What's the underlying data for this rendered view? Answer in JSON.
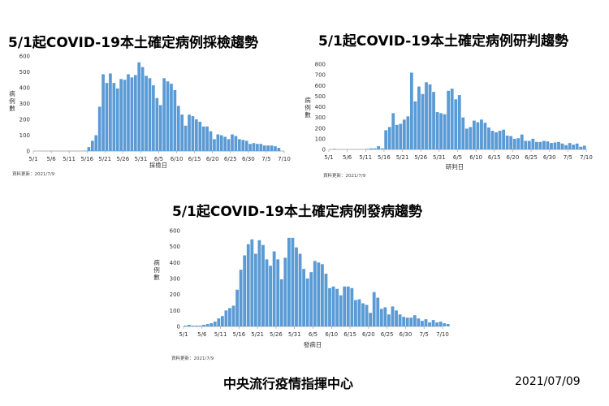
{
  "footer": {
    "center": "中央流行疫情指揮中心",
    "date": "2021/07/09"
  },
  "bar_color": "#5b9bd5",
  "chart_data": [
    {
      "type": "bar",
      "title": "5/1起COVID-19本土確定病例採檢趨勢",
      "xlabel": "採檢日",
      "ylabel": "病例數",
      "ylim": [
        0,
        600
      ],
      "yticks": [
        0,
        100,
        200,
        300,
        400,
        500,
        600
      ],
      "xtick_labels": [
        "5/1",
        "5/6",
        "5/11",
        "5/16",
        "5/21",
        "5/26",
        "5/31",
        "6/5",
        "6/10",
        "6/15",
        "6/20",
        "6/25",
        "6/30",
        "7/5",
        "7/10"
      ],
      "note": "資料更新：2021/7/9",
      "start_date": "5/1",
      "values": [
        0,
        0,
        0,
        0,
        0,
        0,
        0,
        0,
        0,
        0,
        0,
        0,
        0,
        0,
        2,
        25,
        65,
        100,
        280,
        485,
        430,
        490,
        430,
        395,
        455,
        450,
        485,
        465,
        480,
        560,
        530,
        475,
        460,
        415,
        335,
        290,
        460,
        440,
        425,
        385,
        285,
        230,
        160,
        230,
        220,
        200,
        185,
        155,
        155,
        125,
        75,
        105,
        100,
        90,
        75,
        105,
        95,
        75,
        70,
        65,
        45,
        50,
        45,
        45,
        35,
        35,
        35,
        30,
        20
      ]
    },
    {
      "type": "bar",
      "title": "5/1起COVID-19本土確定病例研判趨勢",
      "xlabel": "研判日",
      "ylabel": "病例數",
      "ylim": [
        0,
        800
      ],
      "yticks": [
        0,
        100,
        200,
        300,
        400,
        500,
        600,
        700,
        800
      ],
      "xtick_labels": [
        "5/1",
        "5/6",
        "5/11",
        "5/16",
        "5/21",
        "5/26",
        "5/31",
        "6/5",
        "6/10",
        "6/15",
        "6/20",
        "6/25",
        "6/30",
        "7/5",
        "7/10"
      ],
      "note": "資料更新：2021/7/9",
      "start_date": "5/1",
      "values": [
        0,
        5,
        0,
        0,
        0,
        0,
        0,
        0,
        0,
        0,
        5,
        10,
        10,
        30,
        10,
        180,
        210,
        340,
        230,
        240,
        280,
        310,
        720,
        450,
        590,
        520,
        630,
        610,
        540,
        350,
        340,
        330,
        550,
        570,
        470,
        510,
        300,
        195,
        210,
        270,
        255,
        280,
        250,
        205,
        175,
        160,
        175,
        185,
        130,
        125,
        100,
        105,
        140,
        80,
        80,
        100,
        70,
        70,
        80,
        75,
        60,
        65,
        70,
        55,
        40,
        60,
        45,
        55,
        25,
        35
      ]
    },
    {
      "type": "bar",
      "title": "5/1起COVID-19本土確定病例發病趨勢",
      "xlabel": "發病日",
      "ylabel": "病例數",
      "ylim": [
        0,
        600
      ],
      "yticks": [
        0,
        100,
        200,
        300,
        400,
        500,
        600
      ],
      "xtick_labels": [
        "5/1",
        "5/6",
        "5/11",
        "5/16",
        "5/21",
        "5/26",
        "5/31",
        "6/5",
        "6/10",
        "6/15",
        "6/20",
        "6/25",
        "6/30",
        "7/5",
        "7/10"
      ],
      "note": "資料更新：2021/7/9",
      "start_date": "5/1",
      "values": [
        5,
        10,
        5,
        5,
        5,
        10,
        15,
        20,
        30,
        50,
        65,
        100,
        115,
        130,
        230,
        355,
        445,
        515,
        545,
        455,
        540,
        510,
        420,
        380,
        470,
        420,
        295,
        430,
        555,
        555,
        495,
        455,
        360,
        300,
        340,
        410,
        400,
        390,
        330,
        240,
        250,
        235,
        195,
        250,
        250,
        240,
        165,
        170,
        145,
        135,
        85,
        215,
        180,
        110,
        120,
        75,
        125,
        100,
        75,
        60,
        55,
        55,
        70,
        50,
        35,
        45,
        25,
        40,
        25,
        30,
        20,
        15
      ]
    }
  ]
}
